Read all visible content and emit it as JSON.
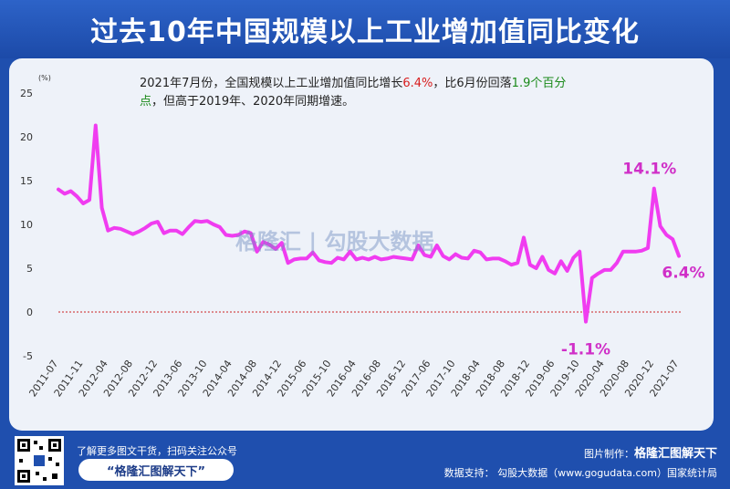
{
  "title": "过去10年中国规模以上工业增加值同比变化",
  "note": {
    "p1": "2021年7月份，全国规模以上工业增加值同比增长",
    "v1": "6.4%",
    "p2": "，比6月份回落",
    "v2": "1.9个百分",
    "p3": "点",
    "p4": "，但高于2019年、2020年同期增速。"
  },
  "watermark": "格隆汇 | 勾股大数据",
  "footer": {
    "hint": "了解更多图文干货，扫码关注公众号",
    "slogan": "“格隆汇图解天下”",
    "made_label": "图片制作：",
    "made_brand": "格隆汇图解天下",
    "source": "数据支持： 勾股大数据（www.gogudata.com）国家统计局"
  },
  "colors": {
    "line": "#f03cf0",
    "label": "#d030c8",
    "zero": "#cc2222",
    "bg": "#1f4fae"
  },
  "chart_data": {
    "type": "line",
    "ylabel": "(%)",
    "ylim": [
      -5,
      25
    ],
    "yticks": [
      -5,
      0,
      5,
      10,
      15,
      20,
      25
    ],
    "xticklabels": [
      "2011-07",
      "2011-11",
      "2012-04",
      "2012-08",
      "2012-12",
      "2013-06",
      "2013-10",
      "2014-04",
      "2014-08",
      "2014-12",
      "2015-06",
      "2015-10",
      "2016-04",
      "2016-08",
      "2016-12",
      "2017-06",
      "2017-10",
      "2018-04",
      "2018-08",
      "2018-12",
      "2019-06",
      "2019-10",
      "2020-04",
      "2020-08",
      "2020-12",
      "2021-07"
    ],
    "values": [
      14.0,
      13.5,
      13.8,
      13.2,
      12.4,
      12.8,
      21.3,
      11.9,
      9.3,
      9.6,
      9.5,
      9.2,
      8.9,
      9.2,
      9.6,
      10.1,
      10.3,
      9.0,
      9.3,
      9.3,
      8.9,
      9.7,
      10.4,
      10.3,
      10.4,
      10.0,
      9.7,
      8.8,
      8.7,
      8.8,
      9.2,
      9.0,
      6.9,
      8.0,
      7.7,
      7.2,
      7.9,
      5.6,
      6.0,
      6.1,
      6.1,
      6.8,
      5.9,
      5.7,
      5.6,
      6.2,
      6.0,
      6.9,
      6.0,
      6.2,
      6.0,
      6.3,
      6.0,
      6.1,
      6.3,
      6.2,
      6.1,
      6.0,
      7.6,
      6.5,
      6.3,
      7.6,
      6.4,
      6.0,
      6.6,
      6.2,
      6.1,
      7.0,
      6.8,
      6.0,
      6.1,
      6.1,
      5.8,
      5.4,
      5.6,
      8.5,
      5.4,
      5.0,
      6.3,
      4.8,
      4.4,
      5.8,
      4.7,
      6.2,
      6.9,
      -1.1,
      3.9,
      4.4,
      4.8,
      4.8,
      5.6,
      6.9,
      6.9,
      6.9,
      7.0,
      7.3,
      14.1,
      9.8,
      8.8,
      8.3,
      6.4
    ],
    "annotations": [
      {
        "text": "14.1%",
        "index": 96
      },
      {
        "text": "-1.1%",
        "index": 85
      },
      {
        "text": "6.4%",
        "index": 100
      }
    ]
  }
}
